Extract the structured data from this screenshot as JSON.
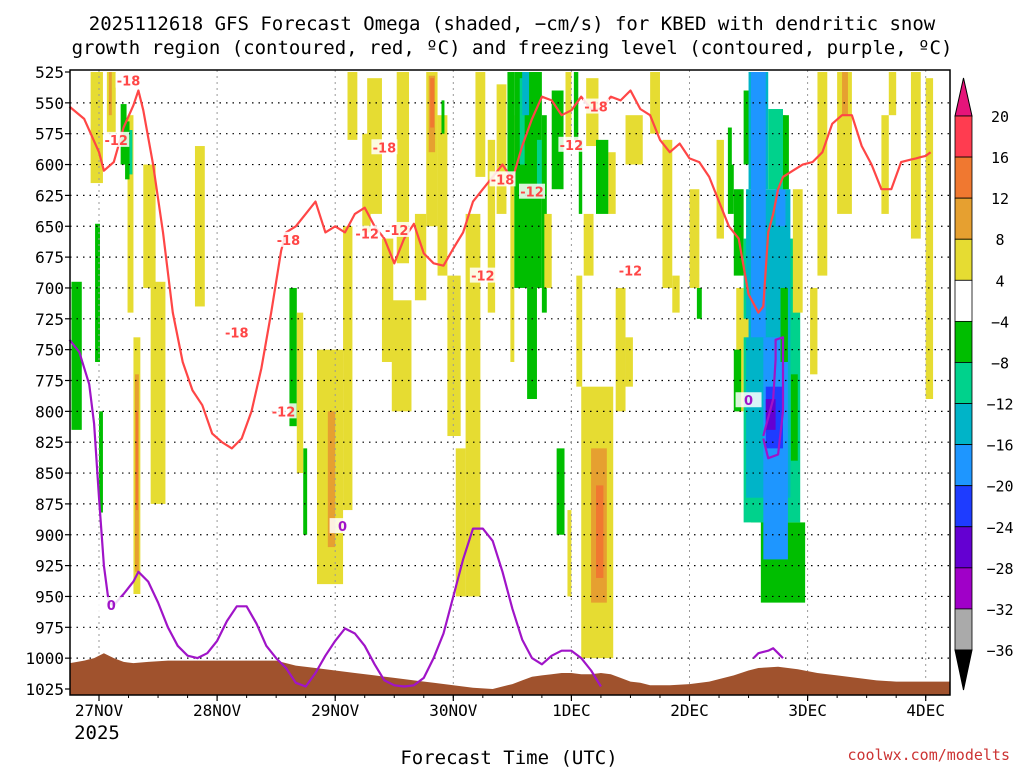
{
  "chart_data": {
    "type": "time-height contour",
    "title_line1": "2025112618 GFS Forecast Omega (shaded, −cm/s) for KBED with dendritic snow",
    "title_line2": "growth region (contoured, red, ºC) and freezing level (contoured, purple, ºC)",
    "xlabel": "Forecast Time (UTC)",
    "credit": "coolwx.com/modelts",
    "year_label": "2025",
    "x_ticks": [
      {
        "label": "27NOV",
        "hour": 6
      },
      {
        "label": "28NOV",
        "hour": 30
      },
      {
        "label": "29NOV",
        "hour": 54
      },
      {
        "label": "30NOV",
        "hour": 78
      },
      {
        "label": "1DEC",
        "hour": 102
      },
      {
        "label": "2DEC",
        "hour": 126
      },
      {
        "label": "3DEC",
        "hour": 150
      },
      {
        "label": "4DEC",
        "hour": 174
      }
    ],
    "xlim_hours": [
      0,
      180
    ],
    "y_axis_label_units": "hPa",
    "y_ticks": [
      525,
      550,
      575,
      600,
      625,
      650,
      675,
      700,
      725,
      750,
      775,
      800,
      825,
      850,
      875,
      900,
      925,
      950,
      975,
      1000,
      1025
    ],
    "ylim": [
      525,
      1025
    ],
    "colorbar": {
      "labels": [
        "20",
        "16",
        "12",
        "8",
        "4",
        "−4",
        "−8",
        "−12",
        "−16",
        "−20",
        "−24",
        "−28",
        "−32",
        "−36"
      ],
      "colors": [
        "#ff3c50",
        "#f07830",
        "#e6a030",
        "#e6dc32",
        "#ffffff",
        "#00be00",
        "#00d28c",
        "#00b4c8",
        "#1e96ff",
        "#1e3cff",
        "#6400d2",
        "#a000c8",
        "#aaaaaa"
      ],
      "top_arrow_color": "#e6147a",
      "bottom_arrow_color": "#000000"
    },
    "contour_colors": {
      "dgz": "#ff4646",
      "freezing": "#a014c8",
      "terrain": "#a0522d"
    },
    "dgz_labels": [
      {
        "text": "-18",
        "hour": 12,
        "p": 532
      },
      {
        "text": "-12",
        "hour": 9.5,
        "p": 580
      },
      {
        "text": "-18",
        "hour": 34,
        "p": 736
      },
      {
        "text": "-18",
        "hour": 44.5,
        "p": 661
      },
      {
        "text": "-12",
        "hour": 43.5,
        "p": 800
      },
      {
        "text": "-18",
        "hour": 64,
        "p": 586
      },
      {
        "text": "-12",
        "hour": 60.5,
        "p": 656
      },
      {
        "text": "-12",
        "hour": 66.5,
        "p": 653
      },
      {
        "text": "-18",
        "hour": 88,
        "p": 612
      },
      {
        "text": "-12",
        "hour": 84,
        "p": 690
      },
      {
        "text": "-12",
        "hour": 94,
        "p": 622
      },
      {
        "text": "-12",
        "hour": 102,
        "p": 584
      },
      {
        "text": "-18",
        "hour": 107,
        "p": 553
      },
      {
        "text": "-12",
        "hour": 114,
        "p": 686
      }
    ],
    "freezing_labels": [
      {
        "text": "0",
        "hour": 8.5,
        "p": 957
      },
      {
        "text": "0",
        "hour": 55.5,
        "p": 893
      },
      {
        "text": "0",
        "hour": 138,
        "p": 791
      }
    ],
    "dgz_minus12_top_outer": [
      [
        0,
        553
      ],
      [
        3,
        563
      ],
      [
        6,
        590
      ],
      [
        7,
        605
      ],
      [
        9,
        598
      ],
      [
        11,
        570
      ],
      [
        13,
        552
      ],
      [
        14,
        540
      ],
      [
        15,
        556
      ],
      [
        17,
        600
      ],
      [
        19,
        655
      ],
      [
        21,
        720
      ],
      [
        23,
        760
      ],
      [
        25,
        783
      ],
      [
        27,
        795
      ],
      [
        29,
        818
      ],
      [
        31,
        825
      ],
      [
        33,
        830
      ],
      [
        35,
        822
      ],
      [
        37,
        800
      ],
      [
        39,
        765
      ],
      [
        41,
        720
      ],
      [
        43,
        670
      ],
      [
        44,
        655
      ],
      [
        46,
        650
      ],
      [
        48,
        640
      ],
      [
        50,
        630
      ],
      [
        52,
        655
      ],
      [
        54,
        650
      ],
      [
        56,
        655
      ],
      [
        58,
        640
      ],
      [
        60,
        635
      ],
      [
        62,
        650
      ],
      [
        64,
        660
      ],
      [
        66,
        680
      ],
      [
        68,
        660
      ],
      [
        70,
        648
      ],
      [
        72,
        672
      ],
      [
        74,
        680
      ],
      [
        76,
        682
      ],
      [
        78,
        668
      ],
      [
        80,
        655
      ],
      [
        82,
        630
      ],
      [
        84,
        620
      ],
      [
        86,
        610
      ],
      [
        88,
        600
      ],
      [
        90,
        612
      ],
      [
        92,
        585
      ],
      [
        94,
        563
      ],
      [
        96,
        545
      ],
      [
        98,
        548
      ],
      [
        100,
        560
      ],
      [
        102,
        556
      ],
      [
        104,
        545
      ],
      [
        106,
        555
      ],
      [
        108,
        555
      ],
      [
        110,
        545
      ],
      [
        112,
        548
      ],
      [
        114,
        540
      ],
      [
        116,
        555
      ],
      [
        118,
        560
      ],
      [
        120,
        580
      ],
      [
        122,
        590
      ],
      [
        124,
        583
      ],
      [
        126,
        595
      ],
      [
        128,
        598
      ],
      [
        130,
        610
      ],
      [
        132,
        630
      ],
      [
        134,
        650
      ],
      [
        136,
        660
      ],
      [
        138,
        705
      ],
      [
        140,
        720
      ],
      [
        141,
        715
      ],
      [
        142,
        655
      ],
      [
        143,
        640
      ],
      [
        144,
        620
      ],
      [
        145,
        610
      ],
      [
        147,
        605
      ],
      [
        149,
        600
      ],
      [
        151,
        598
      ],
      [
        153,
        590
      ],
      [
        155,
        567
      ],
      [
        157,
        560
      ],
      [
        159,
        560
      ],
      [
        161,
        585
      ],
      [
        163,
        600
      ],
      [
        165,
        620
      ],
      [
        167,
        620
      ],
      [
        169,
        598
      ],
      [
        170,
        597
      ],
      [
        171,
        596
      ],
      [
        172,
        595
      ],
      [
        173,
        594
      ],
      [
        174,
        593
      ],
      [
        175,
        590
      ]
    ],
    "freezing_line": [
      [
        0,
        742
      ],
      [
        2,
        752
      ],
      [
        4,
        778
      ],
      [
        5,
        810
      ],
      [
        6,
        870
      ],
      [
        7,
        925
      ],
      [
        8,
        955
      ],
      [
        9,
        957
      ],
      [
        11,
        948
      ],
      [
        13,
        938
      ],
      [
        14,
        930
      ],
      [
        16,
        938
      ],
      [
        18,
        955
      ],
      [
        20,
        975
      ],
      [
        22,
        990
      ],
      [
        24,
        998
      ],
      [
        26,
        1000
      ],
      [
        28,
        996
      ],
      [
        30,
        986
      ],
      [
        32,
        970
      ],
      [
        34,
        958
      ],
      [
        36,
        958
      ],
      [
        38,
        972
      ],
      [
        40,
        990
      ],
      [
        42,
        1000
      ],
      [
        44,
        1008
      ],
      [
        46,
        1020
      ],
      [
        48,
        1023
      ],
      [
        50,
        1012
      ],
      [
        52,
        998
      ],
      [
        54,
        986
      ],
      [
        56,
        976
      ],
      [
        58,
        980
      ],
      [
        60,
        990
      ],
      [
        62,
        1005
      ],
      [
        64,
        1018
      ],
      [
        66,
        1022
      ],
      [
        68,
        1023
      ],
      [
        70,
        1022
      ],
      [
        72,
        1016
      ],
      [
        74,
        1000
      ],
      [
        76,
        980
      ],
      [
        78,
        950
      ],
      [
        80,
        920
      ],
      [
        82,
        895
      ],
      [
        84,
        895
      ],
      [
        86,
        905
      ],
      [
        88,
        930
      ],
      [
        90,
        960
      ],
      [
        92,
        985
      ],
      [
        94,
        1000
      ],
      [
        96,
        1005
      ],
      [
        98,
        998
      ],
      [
        100,
        994
      ],
      [
        102,
        994
      ],
      [
        104,
        1000
      ],
      [
        106,
        1010
      ],
      [
        108,
        1023
      ]
    ],
    "freezing_loop_dec3": [
      [
        139,
        1000
      ],
      [
        140,
        996
      ],
      [
        142,
        994
      ],
      [
        143,
        992
      ],
      [
        144,
        996
      ],
      [
        145,
        1000
      ]
    ],
    "freezing_isolated_dec3": [
      [
        141,
        820
      ],
      [
        143,
        790
      ],
      [
        143.5,
        758
      ],
      [
        143.5,
        742
      ],
      [
        145,
        740
      ],
      [
        145,
        800
      ],
      [
        144,
        835
      ],
      [
        142,
        838
      ],
      [
        141,
        822
      ]
    ]
  }
}
